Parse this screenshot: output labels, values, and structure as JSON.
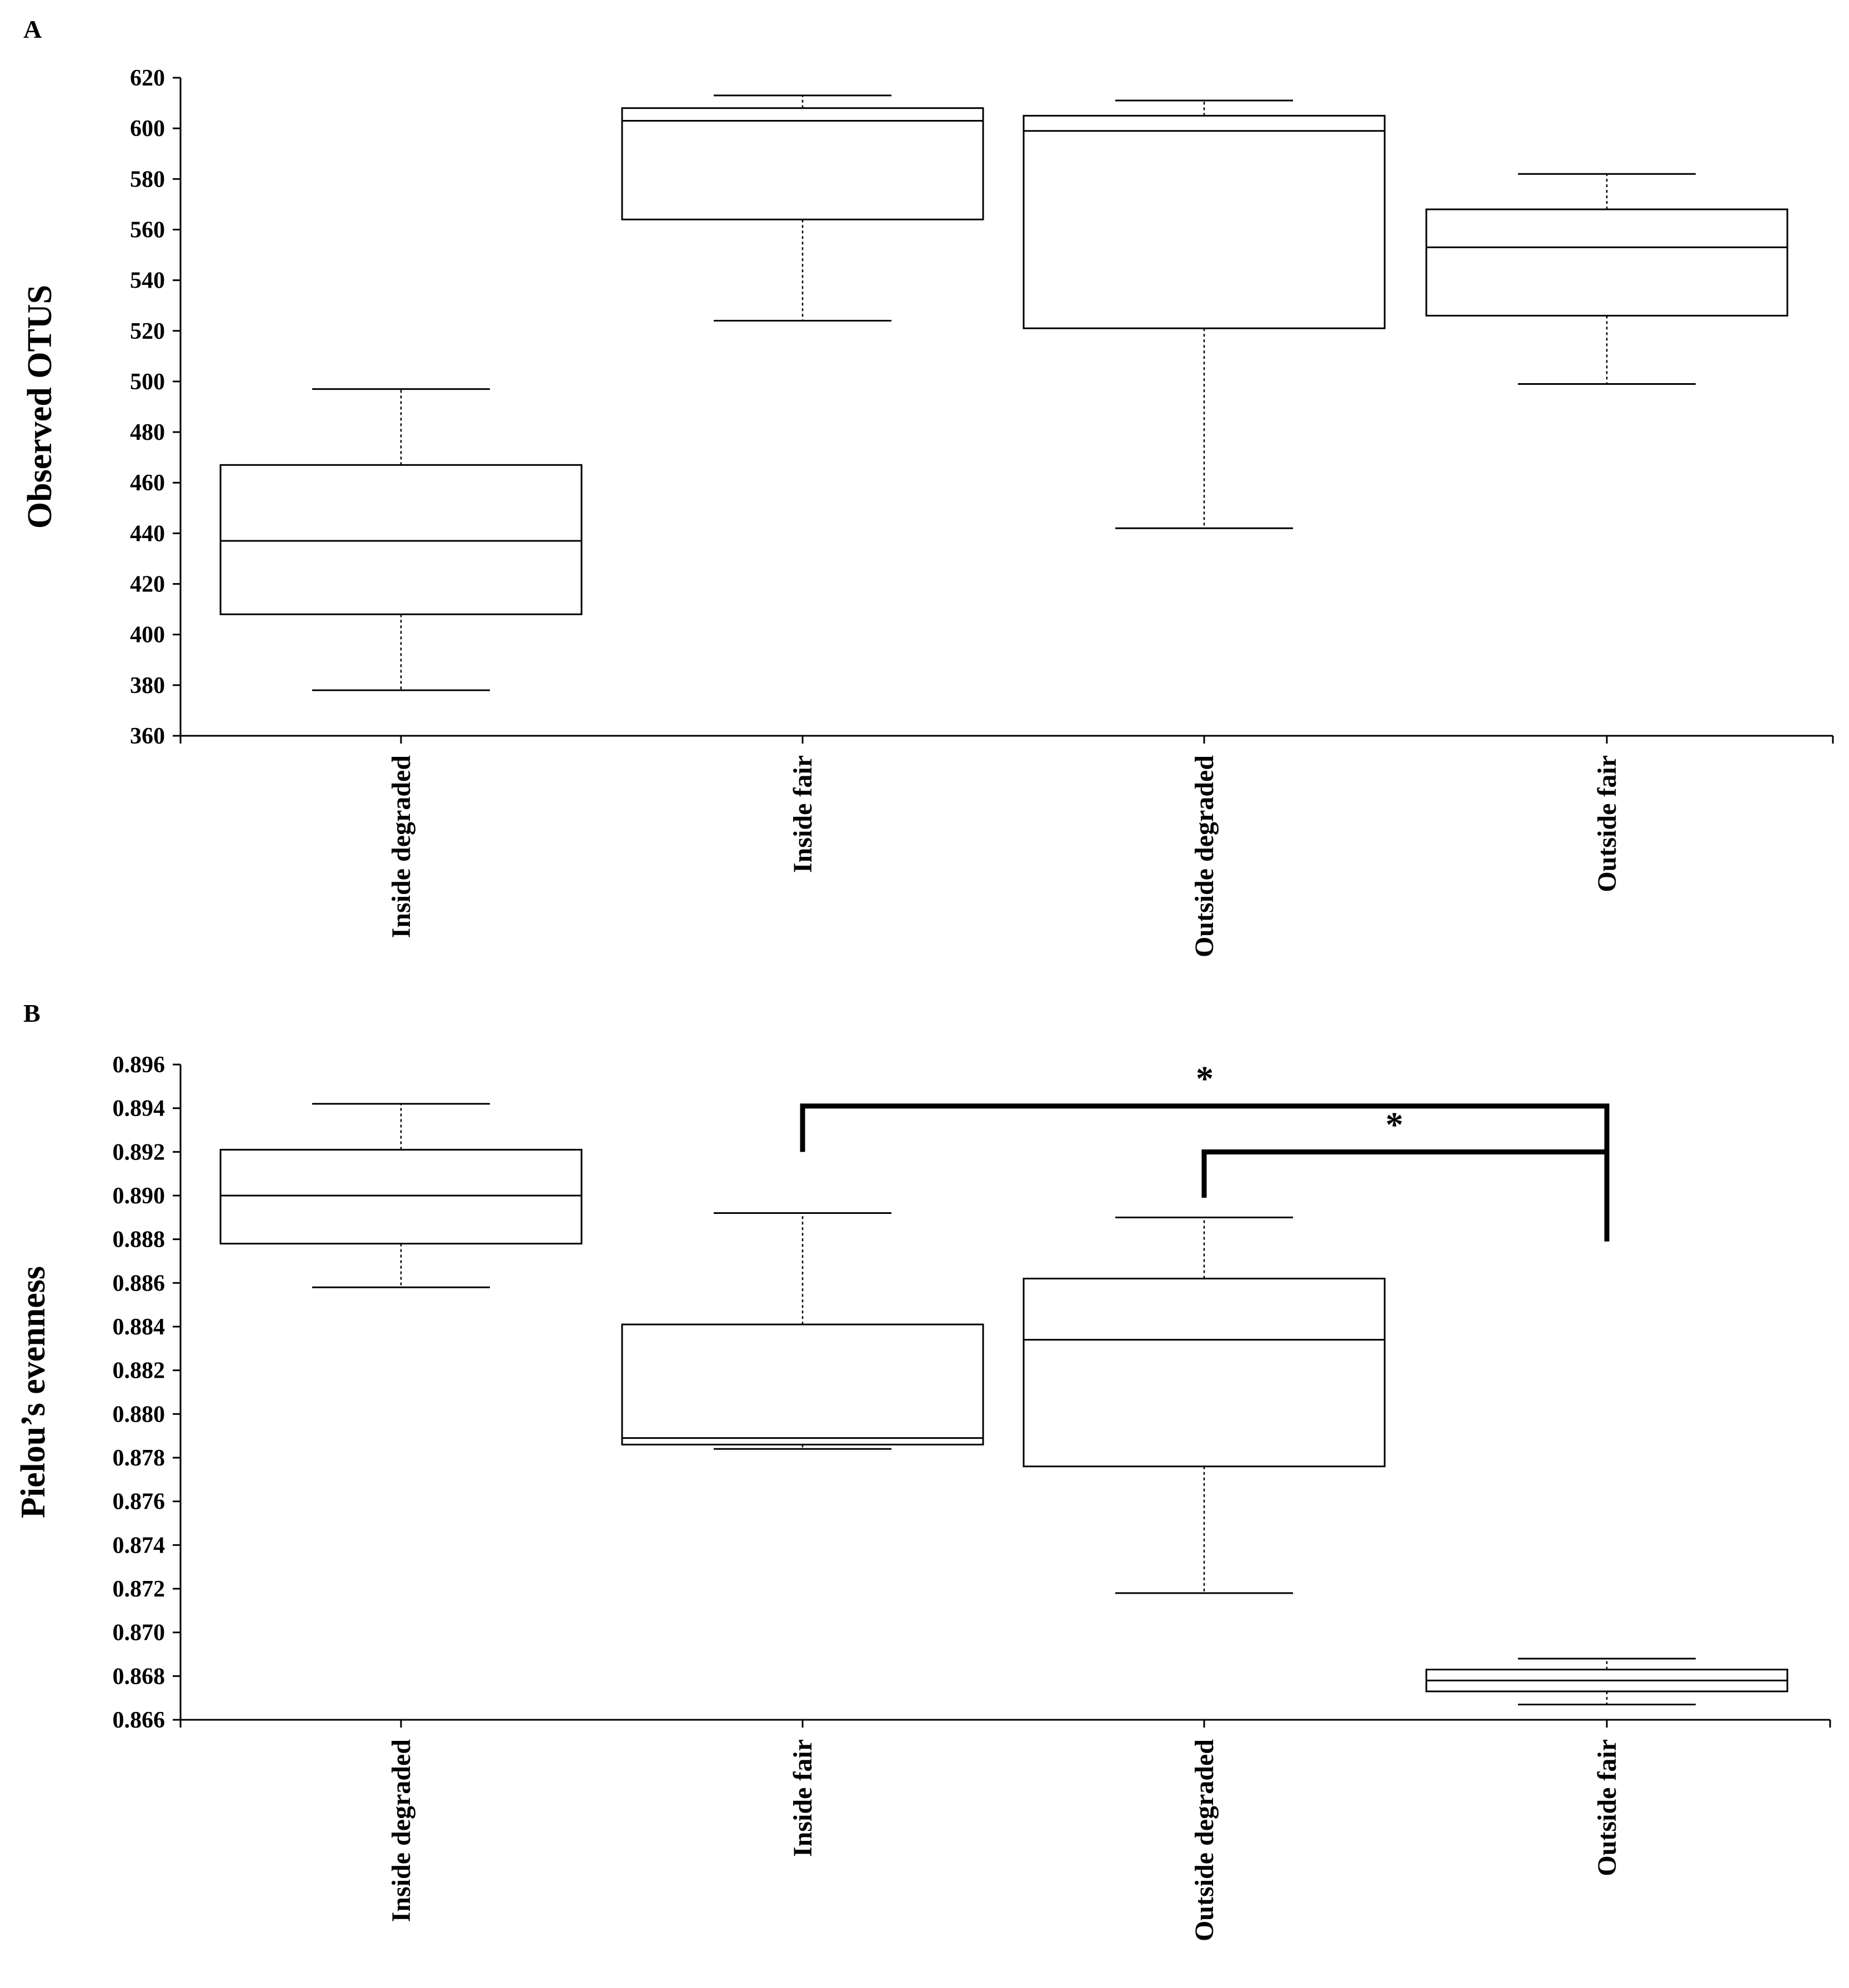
{
  "chart_data": [
    {
      "type": "box",
      "panel_label": "A",
      "ylabel": "Observed OTUS",
      "ylim": [
        360,
        620
      ],
      "yticks": [
        "620",
        "600",
        "580",
        "560",
        "540",
        "520",
        "500",
        "480",
        "460",
        "440",
        "420",
        "400",
        "380",
        "360"
      ],
      "categories": [
        "Inside degraded",
        "Inside fair",
        "Outside degraded",
        "Outside fair"
      ],
      "boxes": [
        {
          "category": "Inside degraded",
          "min": 378,
          "q1": 408,
          "median": 437,
          "q3": 467,
          "max": 497
        },
        {
          "category": "Inside fair",
          "min": 524,
          "q1": 564,
          "median": 603,
          "q3": 608,
          "max": 613
        },
        {
          "category": "Outside degraded",
          "min": 442,
          "q1": 521,
          "median": 599,
          "q3": 605,
          "max": 611
        },
        {
          "category": "Outside fair",
          "min": 499,
          "q1": 526,
          "median": 553,
          "q3": 568,
          "max": 582
        }
      ],
      "significance": []
    },
    {
      "type": "box",
      "panel_label": "B",
      "ylabel": "Pielou’s evenness",
      "ylim": [
        0.866,
        0.896
      ],
      "yticks": [
        "0.896",
        "0.894",
        "0.892",
        "0.890",
        "0.888",
        "0.886",
        "0.884",
        "0.882",
        "0.880",
        "0.878",
        "0.876",
        "0.874",
        "0.872",
        "0.870",
        "0.868",
        "0.866"
      ],
      "categories": [
        "Inside degraded",
        "Inside fair",
        "Outside degraded",
        "Outside fair"
      ],
      "boxes": [
        {
          "category": "Inside degraded",
          "min": 0.8858,
          "q1": 0.8878,
          "median": 0.89,
          "q3": 0.8921,
          "max": 0.8942
        },
        {
          "category": "Inside fair",
          "min": 0.8784,
          "q1": 0.8786,
          "median": 0.8789,
          "q3": 0.8841,
          "max": 0.8892
        },
        {
          "category": "Outside degraded",
          "min": 0.8718,
          "q1": 0.8776,
          "median": 0.8834,
          "q3": 0.8862,
          "max": 0.889
        },
        {
          "category": "Outside fair",
          "min": 0.8667,
          "q1": 0.8673,
          "median": 0.8678,
          "q3": 0.8683,
          "max": 0.8688
        }
      ],
      "significance": [
        {
          "from": "Inside fair",
          "to": "Outside fair",
          "label": "*",
          "level": 0.8941
        },
        {
          "from": "Outside degraded",
          "to": "Outside fair",
          "label": "*",
          "level": 0.892
        }
      ]
    }
  ]
}
